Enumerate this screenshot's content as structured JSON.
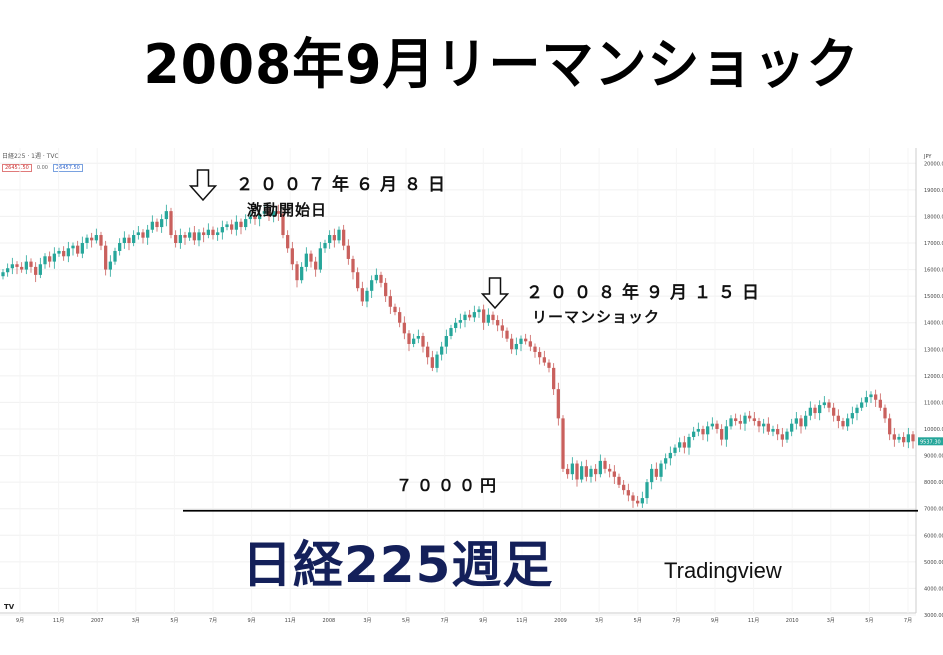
{
  "title": "2008年9月リーマンショック",
  "subtitle": "日経225週足",
  "credit": "Tradingview",
  "chart_header": "日経225 · 1週 · TVC",
  "chart_badges": [
    "26457.50",
    "0.00",
    "26457.50"
  ],
  "currency_label": "JPY",
  "tv_logo": "TV",
  "annotations": {
    "start_date": "２００７年６月８日",
    "start_note": "激動開始日",
    "lehman_date": "２００８年９月１５日",
    "lehman_note": "リーマンショック",
    "support_label": "７０００円"
  },
  "colors": {
    "up": "#26a69a",
    "down": "#c9605d",
    "annotation": "#000000",
    "subtitle": "#14205a"
  },
  "chart_data": {
    "type": "candlestick",
    "title": "2008年9月リーマンショック",
    "subtitle": "日経225週足",
    "ylim": [
      3000,
      20500
    ],
    "y_ticks": [
      3000,
      4000,
      5000,
      6000,
      7000,
      8000,
      9000,
      10000,
      11000,
      12000,
      13000,
      14000,
      15000,
      16000,
      17000,
      18000,
      19000,
      20000
    ],
    "y_tick_labels": [
      "3000.00",
      "4000.00",
      "5000.00",
      "6000.00",
      "7000.00",
      "8000.00",
      "9000.00",
      "10000.00",
      "11000.00",
      "12000.00",
      "13000.00",
      "14000.00",
      "15000.00",
      "16000.00",
      "17000.00",
      "18000.00",
      "19000.00",
      "20000.00"
    ],
    "last_price_label": "9537.30",
    "x_tick_labels": [
      "9月",
      "11月",
      "2007",
      "3月",
      "5月",
      "7月",
      "9月",
      "11月",
      "2008",
      "3月",
      "5月",
      "7月",
      "9月",
      "11月",
      "2009",
      "3月",
      "5月",
      "7月",
      "9月",
      "11月",
      "2010",
      "3月",
      "5月",
      "7月"
    ],
    "support_level": 7000,
    "arrows": [
      {
        "label": "２００７年６月８日",
        "at": "2007-06-08"
      },
      {
        "label": "２００８年９月１５日",
        "at": "2008-09-15"
      }
    ],
    "closes": [
      15900,
      16050,
      16200,
      16100,
      16000,
      16300,
      16100,
      15800,
      16200,
      16500,
      16300,
      16600,
      16700,
      16500,
      16800,
      16900,
      16600,
      17000,
      17200,
      17100,
      17300,
      16900,
      16000,
      16300,
      16700,
      17000,
      17200,
      17000,
      17300,
      17400,
      17200,
      17500,
      17800,
      17600,
      17900,
      18200,
      17300,
      17000,
      17300,
      17200,
      17400,
      17100,
      17400,
      17300,
      17500,
      17300,
      17400,
      17600,
      17700,
      17500,
      17800,
      17600,
      17900,
      18000,
      17900,
      18100,
      18200,
      18000,
      18200,
      18100,
      17300,
      16800,
      16200,
      15600,
      16100,
      16600,
      16300,
      16000,
      16800,
      17000,
      17300,
      17100,
      17500,
      16900,
      16400,
      15900,
      15300,
      14800,
      15200,
      15600,
      15800,
      15500,
      15000,
      14600,
      14400,
      14000,
      13600,
      13200,
      13400,
      13500,
      13100,
      12700,
      12300,
      12800,
      13100,
      13500,
      13800,
      14000,
      14100,
      14300,
      14200,
      14400,
      14500,
      14000,
      14300,
      14100,
      13900,
      13700,
      13400,
      13000,
      13200,
      13400,
      13300,
      13100,
      12900,
      12700,
      12500,
      12300,
      11500,
      10400,
      8500,
      8300,
      8700,
      8100,
      8600,
      8200,
      8500,
      8300,
      8800,
      8500,
      8400,
      8200,
      7900,
      7700,
      7500,
      7300,
      7200,
      7400,
      8000,
      8500,
      8200,
      8700,
      8900,
      9100,
      9300,
      9500,
      9300,
      9700,
      9900,
      10000,
      9800,
      10100,
      10200,
      10000,
      9600,
      10100,
      10400,
      10300,
      10200,
      10500,
      10400,
      10300,
      10100,
      10200,
      9900,
      10000,
      9800,
      9600,
      9900,
      10200,
      10400,
      10100,
      10500,
      10800,
      10600,
      10900,
      11000,
      10800,
      10500,
      10300,
      10100,
      10400,
      10600,
      10800,
      11000,
      11200,
      11300,
      11100,
      10800,
      10400,
      9800,
      9600,
      9700,
      9500,
      9800,
      9537
    ]
  }
}
